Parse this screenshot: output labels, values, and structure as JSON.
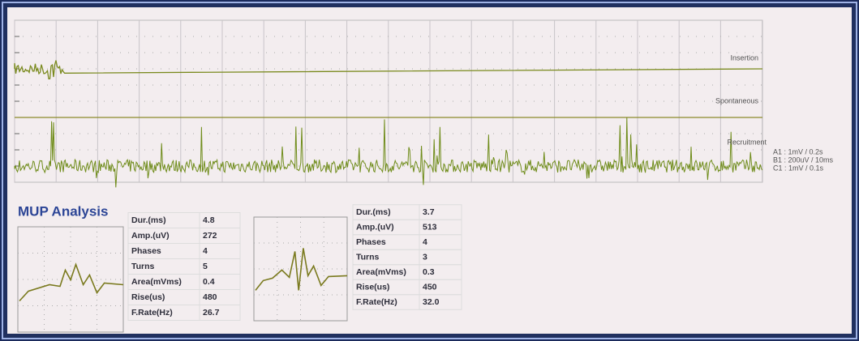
{
  "trace_labels": [
    "Insertion",
    "Spontaneous",
    "Recruitment"
  ],
  "scales": [
    "A1 : 1mV / 0.2s",
    "B1 : 200uV / 10ms",
    "C1 : 1mV / 0.1s"
  ],
  "analysis": {
    "title": "MUP Analysis",
    "panels": [
      {
        "rows": [
          [
            "Dur.(ms)",
            "4.8"
          ],
          [
            "Amp.(uV)",
            "272"
          ],
          [
            "Phases",
            "4"
          ],
          [
            "Turns",
            "5"
          ],
          [
            "Area(mVms)",
            "0.4"
          ],
          [
            "Rise(us)",
            "480"
          ],
          [
            "F.Rate(Hz)",
            "26.7"
          ]
        ]
      },
      {
        "rows": [
          [
            "Dur.(ms)",
            "3.7"
          ],
          [
            "Amp.(uV)",
            "513"
          ],
          [
            "Phases",
            "4"
          ],
          [
            "Turns",
            "3"
          ],
          [
            "Area(mVms)",
            "0.3"
          ],
          [
            "Rise(us)",
            "450"
          ],
          [
            "F.Rate(Hz)",
            "32.0"
          ]
        ]
      }
    ]
  }
}
